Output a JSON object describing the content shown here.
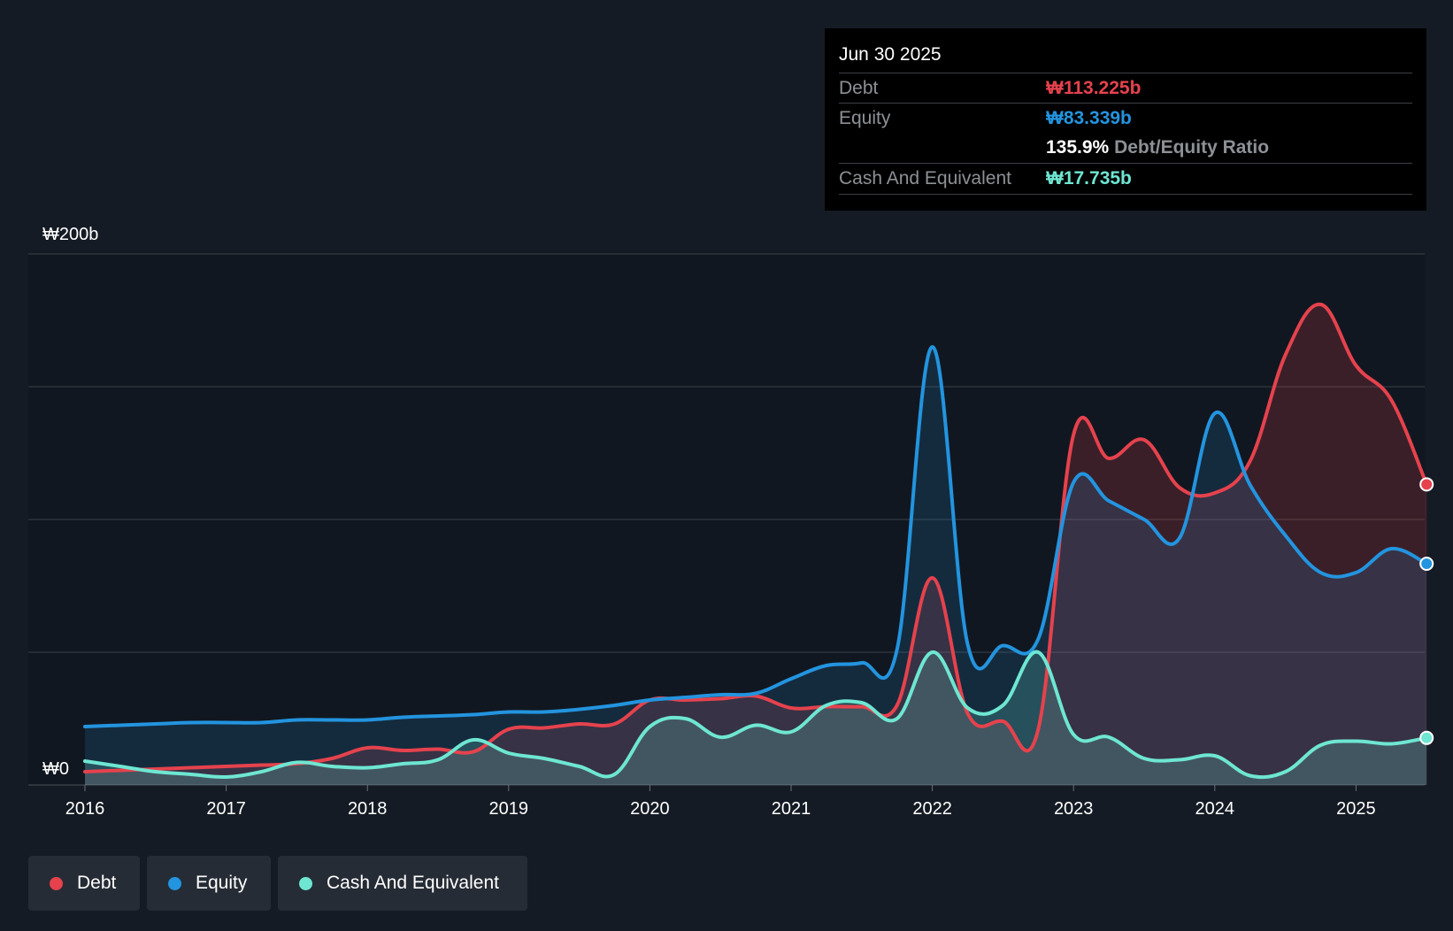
{
  "tooltip": {
    "date": "Jun 30 2025",
    "debt_label": "Debt",
    "debt_value": "₩113.225b",
    "equity_label": "Equity",
    "equity_value": "₩83.339b",
    "ratio_value": "135.9%",
    "ratio_label": "Debt/Equity Ratio",
    "cash_label": "Cash And Equivalent",
    "cash_value": "₩17.735b"
  },
  "legend": {
    "debt": "Debt",
    "equity": "Equity",
    "cash": "Cash And Equivalent"
  },
  "colors": {
    "background": "#151b24",
    "debt": "#e5424d",
    "equity": "#2394df",
    "cash": "#6ee6d2",
    "grid": "#3a4049",
    "label": "#ffffff"
  },
  "chart_data": {
    "type": "area",
    "title": "",
    "xlabel": "",
    "ylabel": "",
    "ylim": [
      0,
      200
    ],
    "y_unit": "₩b",
    "y_tick_labels": [
      {
        "value": 200,
        "label": "₩200b"
      },
      {
        "value": 0,
        "label": "₩0"
      }
    ],
    "gridlines": [
      0,
      50,
      100,
      150,
      200
    ],
    "x_ticks": [
      2016,
      2017,
      2018,
      2019,
      2020,
      2021,
      2022,
      2023,
      2024,
      2025
    ],
    "x_range": [
      2015.6,
      2025.5
    ],
    "series": [
      {
        "name": "Debt",
        "x": [
          2016.0,
          2016.25,
          2016.5,
          2016.75,
          2017.0,
          2017.25,
          2017.5,
          2017.75,
          2018.0,
          2018.25,
          2018.5,
          2018.75,
          2019.0,
          2019.25,
          2019.5,
          2019.75,
          2020.0,
          2020.25,
          2020.5,
          2020.75,
          2021.0,
          2021.25,
          2021.5,
          2021.75,
          2022.0,
          2022.25,
          2022.5,
          2022.75,
          2023.0,
          2023.25,
          2023.5,
          2023.75,
          2024.0,
          2024.25,
          2024.5,
          2024.75,
          2025.0,
          2025.25,
          2025.5
        ],
        "values": [
          5,
          5.5,
          6,
          6.5,
          7,
          7.5,
          8,
          10,
          14,
          13,
          13.5,
          12.5,
          21,
          21.5,
          23,
          23,
          32,
          32,
          32.5,
          33.5,
          29,
          29.5,
          29.5,
          30,
          78,
          27,
          24,
          21,
          132,
          123,
          130,
          112,
          110,
          122,
          162,
          181,
          158,
          145,
          113.225
        ]
      },
      {
        "name": "Equity",
        "x": [
          2016.0,
          2016.25,
          2016.5,
          2016.75,
          2017.0,
          2017.25,
          2017.5,
          2017.75,
          2018.0,
          2018.25,
          2018.5,
          2018.75,
          2019.0,
          2019.25,
          2019.5,
          2019.75,
          2020.0,
          2020.25,
          2020.5,
          2020.75,
          2021.0,
          2021.25,
          2021.5,
          2021.75,
          2022.0,
          2022.25,
          2022.5,
          2022.75,
          2023.0,
          2023.25,
          2023.5,
          2023.75,
          2024.0,
          2024.25,
          2024.5,
          2024.75,
          2025.0,
          2025.25,
          2025.5
        ],
        "values": [
          22,
          22.5,
          23,
          23.5,
          23.5,
          23.5,
          24.5,
          24.5,
          24.5,
          25.5,
          26,
          26.5,
          27.5,
          27.5,
          28.5,
          30,
          32,
          33,
          34,
          34.5,
          40,
          45,
          46,
          51,
          165,
          53,
          52.5,
          55,
          114,
          107,
          100,
          93,
          140,
          113,
          94,
          80,
          80,
          89,
          83.339
        ]
      },
      {
        "name": "Cash And Equivalent",
        "x": [
          2016.0,
          2016.25,
          2016.5,
          2016.75,
          2017.0,
          2017.25,
          2017.5,
          2017.75,
          2018.0,
          2018.25,
          2018.5,
          2018.75,
          2019.0,
          2019.25,
          2019.5,
          2019.75,
          2020.0,
          2020.25,
          2020.5,
          2020.75,
          2021.0,
          2021.25,
          2021.5,
          2021.75,
          2022.0,
          2022.25,
          2022.5,
          2022.75,
          2023.0,
          2023.25,
          2023.5,
          2023.75,
          2024.0,
          2024.25,
          2024.5,
          2024.75,
          2025.0,
          2025.25,
          2025.5
        ],
        "values": [
          9,
          7,
          5,
          4,
          3,
          5,
          8.5,
          7,
          6.5,
          8,
          9.5,
          17,
          12,
          10,
          7,
          4,
          22,
          25,
          18,
          22.5,
          20,
          30,
          31,
          25,
          50,
          29,
          30,
          50,
          19,
          18,
          10,
          9.5,
          11,
          3.5,
          5,
          15,
          16.5,
          15.5,
          17.735
        ]
      }
    ]
  }
}
